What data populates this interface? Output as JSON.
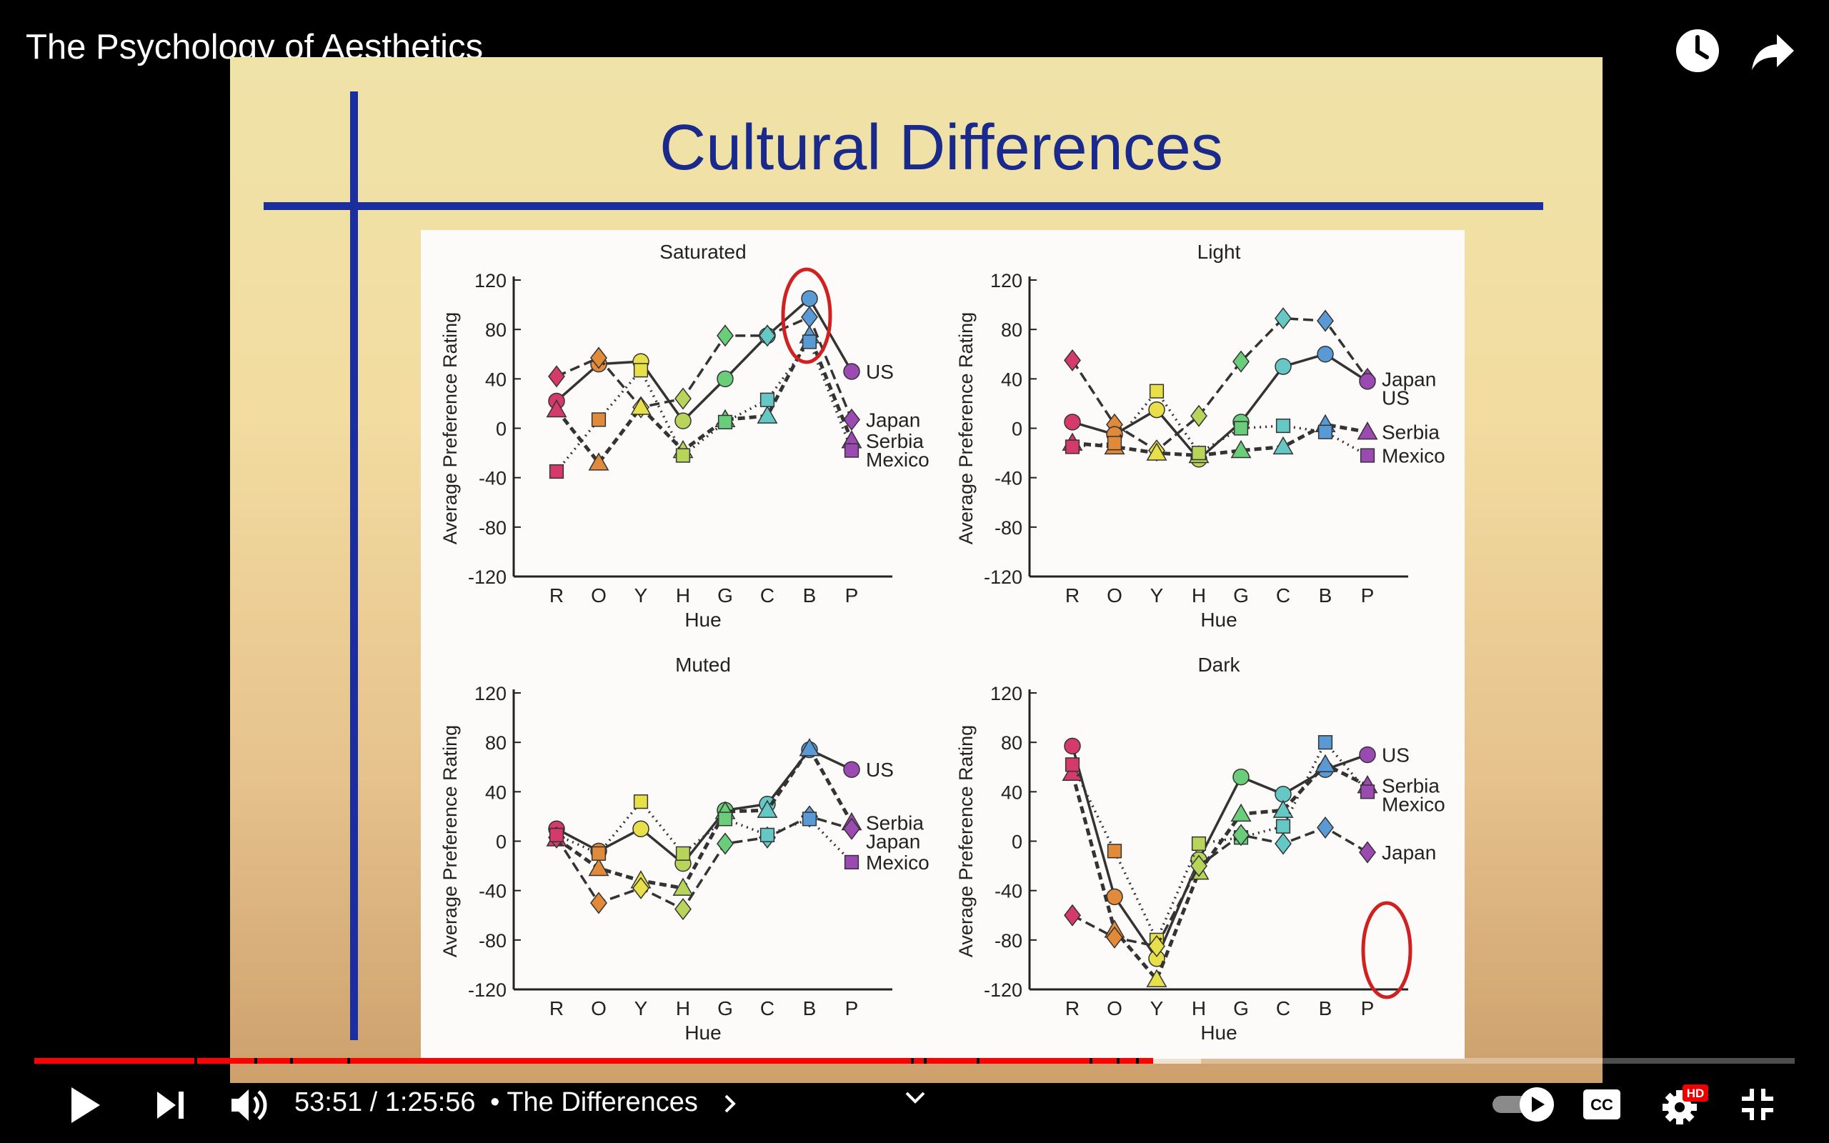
{
  "video": {
    "title": "The Psychology of Aesthetics",
    "current_time": "53:51",
    "duration": "1:25:56",
    "time_separator": " / ",
    "chapter": "• The Differences",
    "progress_fraction": 0.627,
    "buffered_fraction": 0.654
  },
  "slide": {
    "title": "Cultural Differences"
  },
  "icons": {
    "watch_later": "clock-icon",
    "share": "share-arrow-icon",
    "play": "play-icon",
    "next": "next-icon",
    "volume": "volume-icon",
    "chapter_chevron": "chevron-right-icon",
    "expand": "chevron-down-icon",
    "autoplay": "autoplay-toggle-icon",
    "captions": "cc-icon",
    "settings": "gear-icon",
    "quality_badge": "HD",
    "exit_fullscreen": "exit-fullscreen-icon"
  },
  "colors": {
    "accent": "#ff0000",
    "slide_title": "#1a2a8c"
  },
  "chart_data": [
    {
      "type": "line",
      "title": "Saturated",
      "xlabel": "Hue",
      "ylabel": "Average Preference Rating",
      "categories": [
        "R",
        "O",
        "Y",
        "H",
        "G",
        "C",
        "B",
        "P"
      ],
      "ylim": [
        -120,
        120
      ],
      "yticks": [
        120,
        80,
        40,
        0,
        -40,
        -80,
        -120
      ],
      "series": [
        {
          "name": "US",
          "values": [
            22,
            52,
            54,
            6,
            40,
            75,
            105,
            46
          ]
        },
        {
          "name": "Japan",
          "values": [
            42,
            57,
            17,
            24,
            75,
            75,
            90,
            7
          ]
        },
        {
          "name": "Serbia",
          "values": [
            15,
            -28,
            17,
            -18,
            7,
            10,
            75,
            -10
          ]
        },
        {
          "name": "Mexico",
          "values": [
            -35,
            7,
            47,
            -22,
            5,
            23,
            70,
            -18
          ]
        }
      ]
    },
    {
      "type": "line",
      "title": "Light",
      "xlabel": "Hue",
      "ylabel": "Average Preference Rating",
      "categories": [
        "R",
        "O",
        "Y",
        "H",
        "G",
        "C",
        "B",
        "P"
      ],
      "ylim": [
        -120,
        120
      ],
      "yticks": [
        120,
        80,
        40,
        0,
        -40,
        -80,
        -120
      ],
      "series": [
        {
          "name": "Japan",
          "values": [
            55,
            3,
            -18,
            10,
            54,
            89,
            87,
            40
          ]
        },
        {
          "name": "US",
          "values": [
            5,
            -5,
            15,
            -25,
            5,
            50,
            60,
            38
          ]
        },
        {
          "name": "Serbia",
          "values": [
            -12,
            -15,
            -20,
            -22,
            -18,
            -15,
            3,
            -3
          ]
        },
        {
          "name": "Mexico",
          "values": [
            -15,
            -12,
            30,
            -20,
            0,
            2,
            -3,
            -22
          ]
        }
      ]
    },
    {
      "type": "line",
      "title": "Muted",
      "xlabel": "Hue",
      "ylabel": "Average Preference Rating",
      "categories": [
        "R",
        "O",
        "Y",
        "H",
        "G",
        "C",
        "B",
        "P"
      ],
      "ylim": [
        -120,
        120
      ],
      "yticks": [
        120,
        80,
        40,
        0,
        -40,
        -80,
        -120
      ],
      "series": [
        {
          "name": "US",
          "values": [
            10,
            -8,
            10,
            -18,
            25,
            30,
            74,
            58
          ]
        },
        {
          "name": "Serbia",
          "values": [
            2,
            -22,
            -32,
            -38,
            24,
            25,
            75,
            15
          ]
        },
        {
          "name": "Japan",
          "values": [
            3,
            -50,
            -38,
            -55,
            -2,
            3,
            20,
            10
          ]
        },
        {
          "name": "Mexico",
          "values": [
            5,
            -10,
            32,
            -10,
            18,
            5,
            18,
            -17
          ]
        }
      ]
    },
    {
      "type": "line",
      "title": "Dark",
      "xlabel": "Hue",
      "ylabel": "Average Preference Rating",
      "categories": [
        "R",
        "O",
        "Y",
        "H",
        "G",
        "C",
        "B",
        "P"
      ],
      "ylim": [
        -120,
        120
      ],
      "yticks": [
        120,
        80,
        40,
        0,
        -40,
        -80,
        -120
      ],
      "series": [
        {
          "name": "US",
          "values": [
            77,
            -45,
            -95,
            -15,
            52,
            38,
            58,
            70
          ]
        },
        {
          "name": "Serbia",
          "values": [
            55,
            -72,
            -112,
            -25,
            22,
            25,
            62,
            45
          ]
        },
        {
          "name": "Mexico",
          "values": [
            62,
            -8,
            -80,
            -2,
            3,
            12,
            80,
            40
          ]
        },
        {
          "name": "Japan",
          "values": [
            -60,
            -78,
            -85,
            -20,
            5,
            -2,
            11,
            -9
          ]
        }
      ]
    }
  ]
}
